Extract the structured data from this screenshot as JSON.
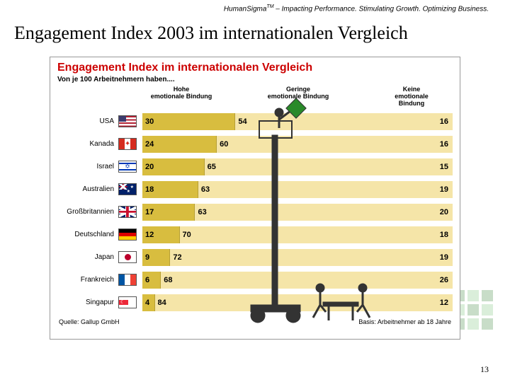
{
  "tagline_prefix": "Human",
  "tagline_sigma": "Sigma",
  "tagline_tm": "TM",
  "tagline_rest": " – Impacting Performance. Stimulating Growth. Optimizing Business.",
  "slide_title": "Engagement Index 2003 im internationalen Vergleich",
  "page_number": "13",
  "chart": {
    "title": "Engagement Index im internationalen Vergleich",
    "subtitle": "Von je 100 Arbeitnehmern haben....",
    "col1_line1": "Hohe",
    "col1_line2": "emotionale Bindung",
    "col2_line1": "Geringe",
    "col2_line2": "emotionale Bindung",
    "col3_line1": "Keine",
    "col3_line2": "emotionale",
    "col3_line3": "Bindung",
    "seg1_color": "#d8bd3f",
    "seg2_color": "#f5e5a8",
    "text_color": "#000000",
    "title_color": "#cc0000",
    "rows": [
      {
        "label": "USA",
        "flag": "us",
        "v1": 30,
        "v2": 54,
        "v3": 16
      },
      {
        "label": "Kanada",
        "flag": "ca",
        "v1": 24,
        "v2": 60,
        "v3": 16
      },
      {
        "label": "Israel",
        "flag": "il",
        "v1": 20,
        "v2": 65,
        "v3": 15
      },
      {
        "label": "Australien",
        "flag": "au",
        "v1": 18,
        "v2": 63,
        "v3": 19
      },
      {
        "label": "Großbritannien",
        "flag": "gb",
        "v1": 17,
        "v2": 63,
        "v3": 20
      },
      {
        "label": "Deutschland",
        "flag": "de",
        "v1": 12,
        "v2": 70,
        "v3": 18
      },
      {
        "label": "Japan",
        "flag": "jp",
        "v1": 9,
        "v2": 72,
        "v3": 19
      },
      {
        "label": "Frankreich",
        "flag": "fr",
        "v1": 6,
        "v2": 68,
        "v3": 26
      },
      {
        "label": "Singapur",
        "flag": "sg",
        "v1": 4,
        "v2": 84,
        "v3": 12
      }
    ],
    "source_label": "Quelle: Gallup GmbH",
    "basis_label": "Basis: Arbeitnehmer ab 18 Jahre"
  }
}
